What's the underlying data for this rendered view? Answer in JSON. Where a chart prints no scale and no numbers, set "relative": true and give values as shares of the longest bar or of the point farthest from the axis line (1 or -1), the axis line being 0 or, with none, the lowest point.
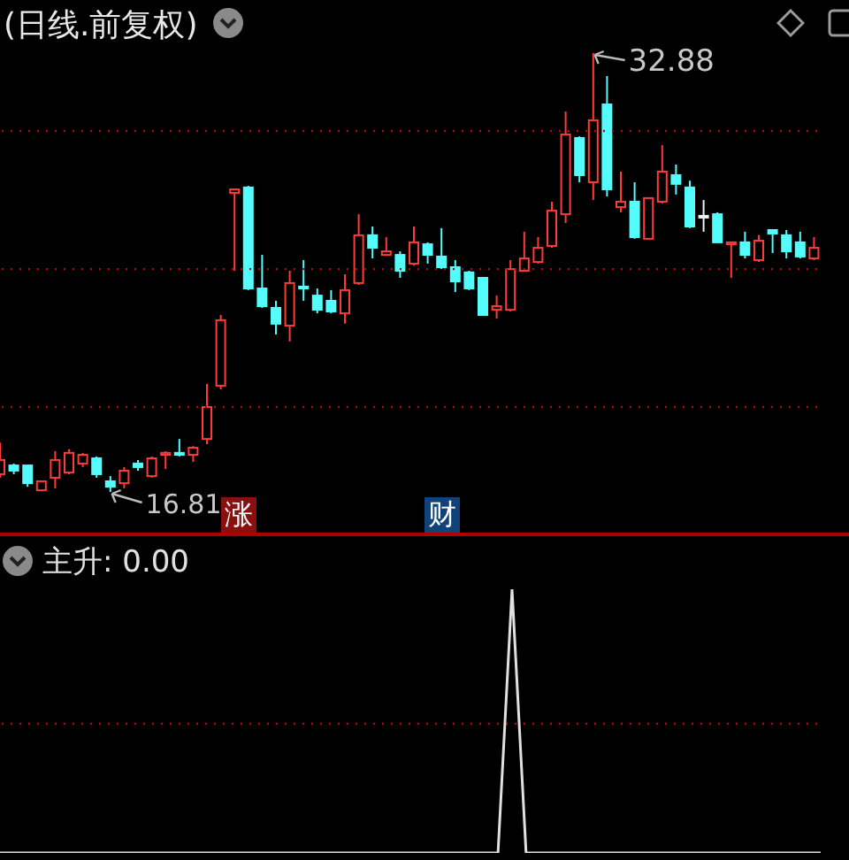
{
  "chart_data": [
    {
      "type": "candlestick",
      "title": "(日线.前复权)",
      "categories": [
        null,
        null,
        null,
        null,
        null,
        null,
        null,
        null,
        null,
        null,
        null,
        null,
        null,
        null,
        null,
        null,
        null,
        null,
        null,
        null,
        null,
        null,
        null,
        null,
        null,
        null,
        null,
        null,
        null,
        null,
        null,
        null,
        null,
        null,
        null,
        null,
        null,
        null,
        null,
        null,
        null,
        null,
        null,
        null,
        null,
        null,
        null,
        null,
        null,
        null,
        null,
        null,
        null,
        null,
        null,
        null,
        null,
        null,
        null,
        null
      ],
      "ohlc": [
        [
          17.46,
          18.62,
          17.33,
          17.98
        ],
        [
          17.78,
          17.85,
          17.46,
          17.59
        ],
        [
          17.78,
          17.78,
          17.0,
          17.13
        ],
        [
          16.87,
          17.2,
          16.87,
          17.2
        ],
        [
          17.33,
          18.3,
          16.94,
          17.98
        ],
        [
          17.52,
          18.37,
          17.46,
          18.24
        ],
        [
          17.85,
          18.24,
          17.72,
          18.17
        ],
        [
          18.04,
          18.11,
          17.33,
          17.46
        ],
        [
          17.2,
          17.39,
          16.81,
          17.0
        ],
        [
          17.13,
          17.72,
          16.94,
          17.59
        ],
        [
          17.85,
          17.98,
          17.59,
          17.72
        ],
        [
          17.39,
          18.11,
          17.33,
          18.04
        ],
        [
          18.17,
          18.3,
          17.65,
          18.24
        ],
        [
          18.24,
          18.75,
          18.11,
          18.17
        ],
        [
          18.17,
          18.49,
          17.91,
          18.43
        ],
        [
          18.75,
          20.76,
          18.56,
          19.92
        ],
        [
          20.7,
          23.29,
          20.57,
          23.1
        ],
        [
          27.76,
          27.89,
          24.91,
          27.89
        ],
        [
          27.96,
          28.02,
          24.2,
          24.26
        ],
        [
          24.26,
          25.49,
          23.55,
          23.61
        ],
        [
          23.55,
          23.81,
          22.58,
          22.97
        ],
        [
          22.9,
          24.91,
          22.32,
          24.46
        ],
        [
          24.33,
          25.3,
          23.81,
          24.26
        ],
        [
          24.0,
          24.26,
          23.35,
          23.48
        ],
        [
          23.81,
          24.2,
          23.35,
          23.42
        ],
        [
          23.35,
          24.78,
          22.97,
          24.2
        ],
        [
          24.46,
          26.98,
          24.39,
          26.21
        ],
        [
          26.21,
          26.53,
          25.36,
          25.75
        ],
        [
          25.49,
          26.14,
          25.49,
          25.62
        ],
        [
          25.49,
          25.62,
          24.65,
          24.91
        ],
        [
          25.17,
          26.53,
          25.1,
          25.95
        ],
        [
          25.88,
          25.95,
          25.17,
          25.49
        ],
        [
          25.43,
          26.47,
          24.97,
          25.04
        ],
        [
          25.04,
          25.3,
          24.13,
          24.52
        ],
        [
          24.85,
          24.91,
          24.2,
          24.26
        ],
        [
          24.65,
          24.65,
          23.29,
          23.29
        ],
        [
          23.48,
          24.0,
          23.16,
          23.61
        ],
        [
          23.48,
          25.3,
          23.42,
          24.97
        ],
        [
          24.91,
          26.34,
          24.91,
          25.36
        ],
        [
          25.23,
          26.14,
          25.17,
          25.75
        ],
        [
          25.82,
          27.44,
          25.75,
          27.11
        ],
        [
          26.98,
          30.74,
          26.66,
          29.9
        ],
        [
          29.77,
          29.83,
          28.15,
          28.41
        ],
        [
          28.15,
          32.88,
          27.5,
          30.42
        ],
        [
          31.0,
          32.04,
          27.63,
          27.89
        ],
        [
          27.24,
          28.54,
          27.05,
          27.44
        ],
        [
          27.44,
          28.15,
          26.08,
          26.14
        ],
        [
          26.08,
          27.57,
          26.08,
          27.57
        ],
        [
          27.44,
          29.51,
          27.37,
          28.54
        ],
        [
          28.41,
          28.8,
          27.7,
          28.09
        ],
        [
          27.96,
          28.21,
          26.47,
          26.53
        ],
        [
          26.92,
          27.5,
          26.34,
          26.92
        ],
        [
          26.98,
          27.05,
          25.95,
          25.95
        ],
        [
          25.88,
          25.95,
          24.65,
          25.95
        ],
        [
          25.95,
          26.34,
          25.36,
          25.49
        ],
        [
          25.3,
          26.21,
          25.23,
          26.01
        ],
        [
          26.4,
          26.4,
          25.56,
          26.27
        ],
        [
          26.21,
          26.4,
          25.36,
          25.62
        ],
        [
          25.95,
          26.34,
          25.36,
          25.43
        ],
        [
          25.36,
          26.14,
          25.3,
          25.75
        ]
      ],
      "annotations": [
        "32.88",
        "16.81",
        "涨",
        "财"
      ],
      "ref_lines": [
        {
          "axis": "y",
          "value": 30.03,
          "color": "#c00000",
          "line_style": "dotted"
        },
        {
          "axis": "y",
          "value": 24.97,
          "color": "#c00000",
          "line_style": "dotted"
        },
        {
          "axis": "y",
          "value": 19.92,
          "color": "#c00000",
          "line_style": "dotted"
        }
      ]
    },
    {
      "type": "line",
      "title": "主升: 0.00",
      "relative": true,
      "categories": [
        null,
        null,
        null,
        null,
        null,
        null,
        null,
        null,
        null,
        null,
        null,
        null,
        null,
        null,
        null,
        null,
        null,
        null,
        null,
        null,
        null,
        null,
        null,
        null,
        null,
        null,
        null,
        null,
        null,
        null,
        null,
        null,
        null,
        null,
        null,
        null,
        null,
        null,
        null,
        null,
        null,
        null,
        null,
        null,
        null,
        null,
        null,
        null,
        null,
        null,
        null,
        null,
        null,
        null,
        null,
        null,
        null,
        null,
        null,
        null
      ],
      "series": [
        {
          "color": "#e0e0e0",
          "values": [
            0,
            0,
            0,
            0,
            0,
            0,
            0,
            0,
            0,
            0,
            0,
            0,
            0,
            0,
            0,
            0,
            0,
            0,
            0,
            0,
            0,
            0,
            0,
            0,
            0,
            0,
            0,
            0,
            0,
            0,
            0,
            0,
            0,
            0,
            0,
            0,
            0,
            1,
            0,
            0,
            0,
            0,
            0,
            0,
            0,
            0,
            0,
            0,
            0,
            0,
            0,
            0,
            0,
            0,
            0,
            0,
            0,
            0,
            0,
            0
          ]
        }
      ],
      "ref_lines": [
        {
          "axis": "y",
          "value": 0.49,
          "color": "#c00000",
          "line_style": "dotted"
        }
      ]
    }
  ]
}
